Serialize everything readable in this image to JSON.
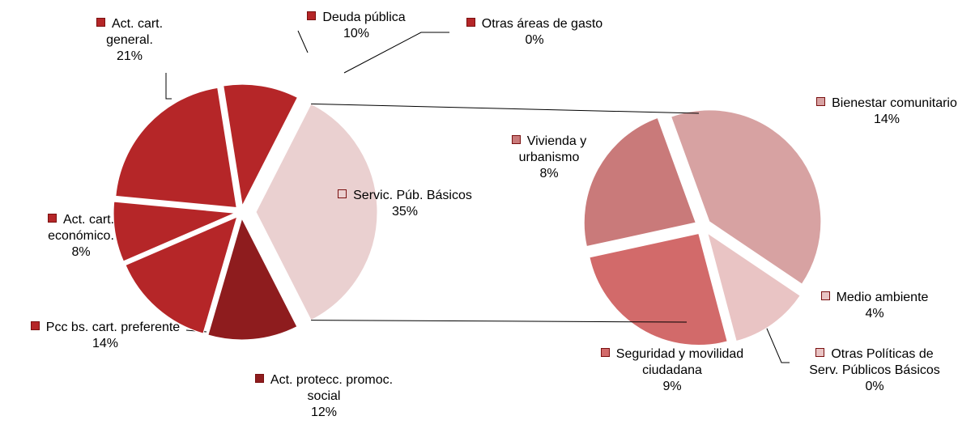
{
  "chart_data": [
    {
      "type": "pie",
      "categories": [
        "Servic. Púb. Básicos",
        "Act. protecc. promoc. social",
        "Pcc bs. cart. preferente",
        "Act. cart. económico.",
        "Act. cart. general.",
        "Deuda pública",
        "Otras áreas de gasto"
      ],
      "values": [
        35,
        12,
        14,
        8,
        21,
        10,
        0
      ],
      "value_labels": [
        "35%",
        "12%",
        "14%",
        "8%",
        "21%",
        "10%",
        "0%"
      ],
      "colors": [
        "#ead0d0",
        "#8e1c1e",
        "#b52628",
        "#b52628",
        "#b52628",
        "#b52628",
        "#b52628"
      ]
    },
    {
      "type": "pie",
      "categories": [
        "Bienestar comunitario",
        "Medio ambiente",
        "Otras Políticas de Serv. Públicos Básicos",
        "Seguridad y movilidad ciudadana",
        "Vivienda y urbanismo"
      ],
      "values": [
        14,
        4,
        0,
        9,
        8
      ],
      "value_labels": [
        "14%",
        "4%",
        "0%",
        "9%",
        "8%"
      ],
      "colors": [
        "#d7a2a2",
        "#e9c4c4",
        "#e9c4c4",
        "#d26a6a",
        "#c97a7a"
      ]
    }
  ]
}
